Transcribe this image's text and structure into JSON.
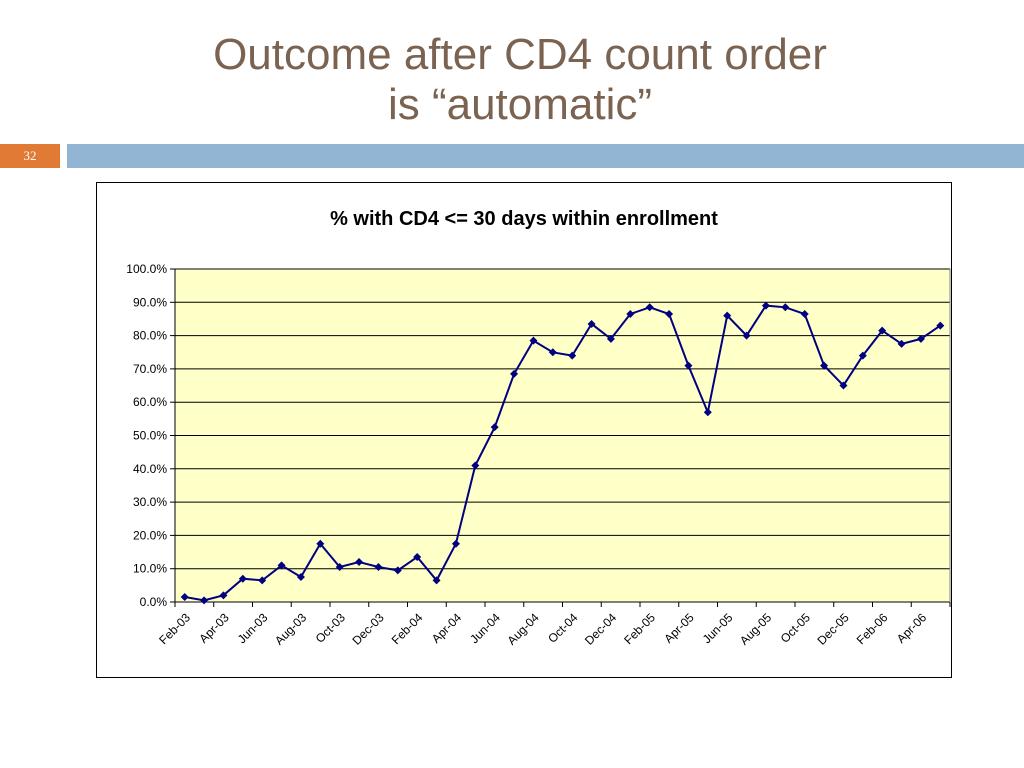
{
  "slide": {
    "title_line1": "Outcome after CD4 count order",
    "title_line2": "is “automatic”",
    "number": "32"
  },
  "colors": {
    "title": "#7b6352",
    "slide_number_bg": "#e07a35",
    "title_bar": "#93b5d4",
    "plot_bg": "#ffffc8",
    "series": "#000080"
  },
  "chart_data": {
    "type": "line",
    "title": "% with CD4 <= 30 days within enrollment",
    "xlabel": "",
    "ylabel": "",
    "ylim": [
      0,
      100
    ],
    "y_ticks": [
      0,
      10,
      20,
      30,
      40,
      50,
      60,
      70,
      80,
      90,
      100
    ],
    "y_tick_labels": [
      "0.0%",
      "10.0%",
      "20.0%",
      "30.0%",
      "40.0%",
      "50.0%",
      "60.0%",
      "70.0%",
      "80.0%",
      "90.0%",
      "100.0%"
    ],
    "grid": true,
    "legend": "none",
    "x_tick_labels": [
      "Feb-03",
      "Apr-03",
      "Jun-03",
      "Aug-03",
      "Oct-03",
      "Dec-03",
      "Feb-04",
      "Apr-04",
      "Jun-04",
      "Aug-04",
      "Oct-04",
      "Dec-04",
      "Feb-05",
      "Apr-05",
      "Jun-05",
      "Aug-05",
      "Oct-05",
      "Dec-05",
      "Feb-06",
      "Apr-06"
    ],
    "categories": [
      "Feb-03",
      "Mar-03",
      "Apr-03",
      "May-03",
      "Jun-03",
      "Jul-03",
      "Aug-03",
      "Sep-03",
      "Oct-03",
      "Nov-03",
      "Dec-03",
      "Jan-04",
      "Feb-04",
      "Mar-04",
      "Apr-04",
      "May-04",
      "Jun-04",
      "Jul-04",
      "Aug-04",
      "Sep-04",
      "Oct-04",
      "Nov-04",
      "Dec-04",
      "Jan-05",
      "Feb-05",
      "Mar-05",
      "Apr-05",
      "May-05",
      "Jun-05",
      "Jul-05",
      "Aug-05",
      "Sep-05",
      "Oct-05",
      "Nov-05",
      "Dec-05",
      "Jan-06",
      "Feb-06",
      "Mar-06",
      "Apr-06",
      "May-06"
    ],
    "series": [
      {
        "values": [
          1.5,
          0.5,
          2.0,
          7.0,
          6.5,
          11.0,
          7.5,
          17.5,
          10.5,
          12.0,
          10.5,
          9.5,
          13.5,
          6.5,
          17.5,
          41.0,
          52.5,
          68.5,
          78.5,
          75.0,
          74.0,
          83.5,
          79.0,
          86.5,
          88.5,
          86.5,
          71.0,
          57.0,
          86.0,
          80.0,
          89.0,
          88.5,
          86.5,
          71.0,
          65.0,
          74.0,
          81.5,
          77.5,
          79.0,
          83.0
        ]
      }
    ]
  }
}
